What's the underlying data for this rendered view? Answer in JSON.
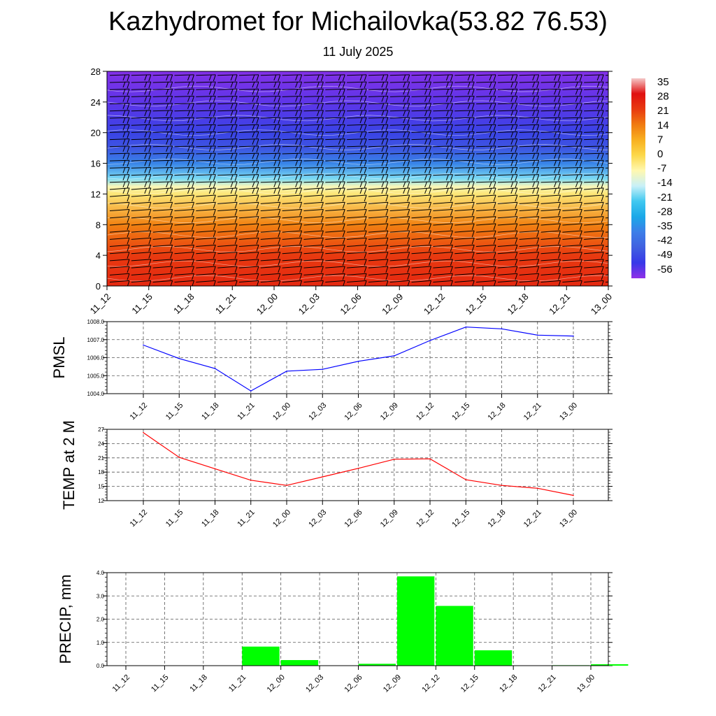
{
  "page": {
    "title": "Kazhydromet for Michailovka(53.82 76.53)",
    "subtitle": "11 July 2025"
  },
  "time_labels": [
    "11_12",
    "11_15",
    "11_18",
    "11_21",
    "12_00",
    "12_03",
    "12_06",
    "12_09",
    "12_12",
    "12_15",
    "12_18",
    "12_21",
    "13_00"
  ],
  "chart_data": [
    {
      "type": "heatmap",
      "title": "",
      "ylabel": "",
      "xlabel": "",
      "ylim": [
        0,
        28
      ],
      "y_ticks": [
        "0",
        "4",
        "8",
        "12",
        "16",
        "20",
        "24",
        "28"
      ],
      "colorbar_labels": [
        "35",
        "28",
        "21",
        "14",
        "7",
        "0",
        "-7",
        "-14",
        "-21",
        "-28",
        "-35",
        "-42",
        "-49",
        "-56"
      ],
      "colorbar_stops": [
        {
          "value": 35,
          "color": "#f5c8c8"
        },
        {
          "value": 28,
          "color": "#e01010"
        },
        {
          "value": 21,
          "color": "#e83a10"
        },
        {
          "value": 14,
          "color": "#f07a10"
        },
        {
          "value": 7,
          "color": "#f8b020"
        },
        {
          "value": 0,
          "color": "#fcd84a"
        },
        {
          "value": -7,
          "color": "#fff8b0"
        },
        {
          "value": -14,
          "color": "#c8f0f8"
        },
        {
          "value": -21,
          "color": "#40c8f0"
        },
        {
          "value": -28,
          "color": "#1aa8e8"
        },
        {
          "value": -35,
          "color": "#3d7ee8"
        },
        {
          "value": -42,
          "color": "#4060e0"
        },
        {
          "value": -49,
          "color": "#3838e8"
        },
        {
          "value": -56,
          "color": "#9030e8"
        }
      ],
      "temperature_profile": [
        {
          "height": 0,
          "value": 24
        },
        {
          "height": 4,
          "value": 21
        },
        {
          "height": 8,
          "value": 13
        },
        {
          "height": 12,
          "value": -3
        },
        {
          "height": 13,
          "value": -8
        },
        {
          "height": 14,
          "value": -18
        },
        {
          "height": 16,
          "value": -34
        },
        {
          "height": 18,
          "value": -44
        },
        {
          "height": 20,
          "value": -47
        },
        {
          "height": 24,
          "value": -52
        },
        {
          "height": 28,
          "value": -55
        }
      ]
    },
    {
      "type": "line",
      "ylabel": "PMSL",
      "ylim": [
        1004.0,
        1008.0
      ],
      "y_ticks": [
        "1004.0",
        "1005.0",
        "1006.0",
        "1007.0",
        "1008.0"
      ],
      "line_color": "#0000ff",
      "values": [
        1006.7,
        1005.95,
        1005.4,
        1004.15,
        1005.25,
        1005.35,
        1005.8,
        1006.1,
        1006.95,
        1007.7,
        1007.6,
        1007.25,
        1007.2
      ]
    },
    {
      "type": "line",
      "ylabel": "TEMP at 2 M",
      "ylim": [
        12,
        27
      ],
      "y_ticks": [
        "12",
        "15",
        "18",
        "21",
        "24",
        "27"
      ],
      "line_color": "#ff0000",
      "values": [
        26.3,
        21.1,
        18.7,
        16.3,
        15.2,
        17.0,
        18.8,
        20.7,
        20.8,
        16.4,
        15.2,
        14.6,
        13.1
      ]
    },
    {
      "type": "bar",
      "ylabel": "PRECIP, mm",
      "ylim": [
        0,
        4.0
      ],
      "y_ticks": [
        "0.0",
        "1.0",
        "2.0",
        "3.0",
        "4.0"
      ],
      "bar_color": "#00ff00",
      "values": [
        0,
        0,
        0,
        0.82,
        0.24,
        0,
        0.08,
        3.84,
        2.57,
        0.66,
        0,
        0.02,
        0.06
      ]
    }
  ]
}
